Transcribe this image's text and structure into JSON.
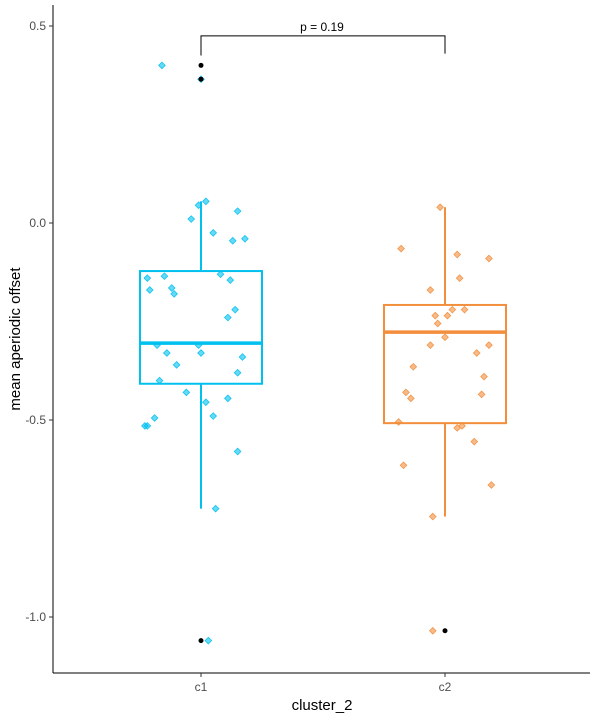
{
  "chart_data": {
    "type": "boxplot",
    "xlabel": "cluster_2",
    "ylabel": "mean aperiodic offset",
    "ylim": [
      -1.13,
      0.55
    ],
    "yticks": [
      0.5,
      0.0,
      -0.5,
      -1.0
    ],
    "ytick_labels": [
      "0.5",
      "0.0",
      "-0.5",
      "-1.0"
    ],
    "categories": [
      "c1",
      "c2"
    ],
    "grid": false,
    "legend": "none",
    "annotation": {
      "text": "p = 0.19",
      "y": 0.475,
      "drop_to": [
        0.425,
        0.43
      ]
    },
    "colors": {
      "c1": "#00c0ef",
      "c2": "#f28e3c",
      "outlier": "#000000",
      "axis": "#000000"
    },
    "boxes": [
      {
        "name": "c1",
        "q1": -0.408,
        "median": -0.305,
        "q3": -0.122,
        "whisker_low": -0.725,
        "whisker_high": 0.055,
        "outliers": [
          0.4,
          0.365,
          -1.06
        ]
      },
      {
        "name": "c2",
        "q1": -0.508,
        "median": -0.277,
        "q3": -0.208,
        "whisker_low": -0.745,
        "whisker_high": 0.04,
        "outliers": [
          -1.035
        ]
      }
    ],
    "jitter": [
      {
        "name": "c1",
        "points": [
          [
            0.84,
            0.4
          ],
          [
            1.0,
            0.365
          ],
          [
            1.02,
            0.055
          ],
          [
            0.99,
            0.045
          ],
          [
            0.96,
            0.01
          ],
          [
            1.05,
            -0.025
          ],
          [
            1.15,
            0.03
          ],
          [
            1.13,
            -0.045
          ],
          [
            1.18,
            -0.04
          ],
          [
            0.78,
            -0.14
          ],
          [
            0.85,
            -0.135
          ],
          [
            0.88,
            -0.165
          ],
          [
            0.79,
            -0.17
          ],
          [
            0.89,
            -0.18
          ],
          [
            1.08,
            -0.13
          ],
          [
            1.12,
            -0.145
          ],
          [
            1.14,
            -0.22
          ],
          [
            1.11,
            -0.24
          ],
          [
            0.82,
            -0.31
          ],
          [
            0.86,
            -0.33
          ],
          [
            0.99,
            -0.31
          ],
          [
            1.0,
            -0.33
          ],
          [
            0.9,
            -0.36
          ],
          [
            1.17,
            -0.34
          ],
          [
            1.15,
            -0.38
          ],
          [
            0.83,
            -0.4
          ],
          [
            0.94,
            -0.43
          ],
          [
            1.11,
            -0.445
          ],
          [
            1.02,
            -0.455
          ],
          [
            1.05,
            -0.49
          ],
          [
            0.77,
            -0.515
          ],
          [
            0.78,
            -0.515
          ],
          [
            0.81,
            -0.495
          ],
          [
            1.15,
            -0.58
          ],
          [
            1.06,
            -0.725
          ],
          [
            1.03,
            -1.06
          ]
        ]
      },
      {
        "name": "c2",
        "points": [
          [
            1.98,
            0.04
          ],
          [
            1.82,
            -0.065
          ],
          [
            2.05,
            -0.08
          ],
          [
            2.18,
            -0.09
          ],
          [
            1.94,
            -0.17
          ],
          [
            2.06,
            -0.14
          ],
          [
            2.03,
            -0.22
          ],
          [
            2.08,
            -0.22
          ],
          [
            2.01,
            -0.235
          ],
          [
            1.96,
            -0.235
          ],
          [
            1.97,
            -0.255
          ],
          [
            2.0,
            -0.29
          ],
          [
            1.94,
            -0.31
          ],
          [
            2.13,
            -0.33
          ],
          [
            2.18,
            -0.31
          ],
          [
            1.87,
            -0.365
          ],
          [
            2.16,
            -0.39
          ],
          [
            2.15,
            -0.435
          ],
          [
            1.84,
            -0.43
          ],
          [
            1.86,
            -0.445
          ],
          [
            2.05,
            -0.52
          ],
          [
            2.07,
            -0.515
          ],
          [
            1.81,
            -0.505
          ],
          [
            2.12,
            -0.555
          ],
          [
            1.83,
            -0.615
          ],
          [
            2.19,
            -0.665
          ],
          [
            1.95,
            -0.745
          ],
          [
            1.95,
            -1.035
          ]
        ]
      }
    ]
  }
}
